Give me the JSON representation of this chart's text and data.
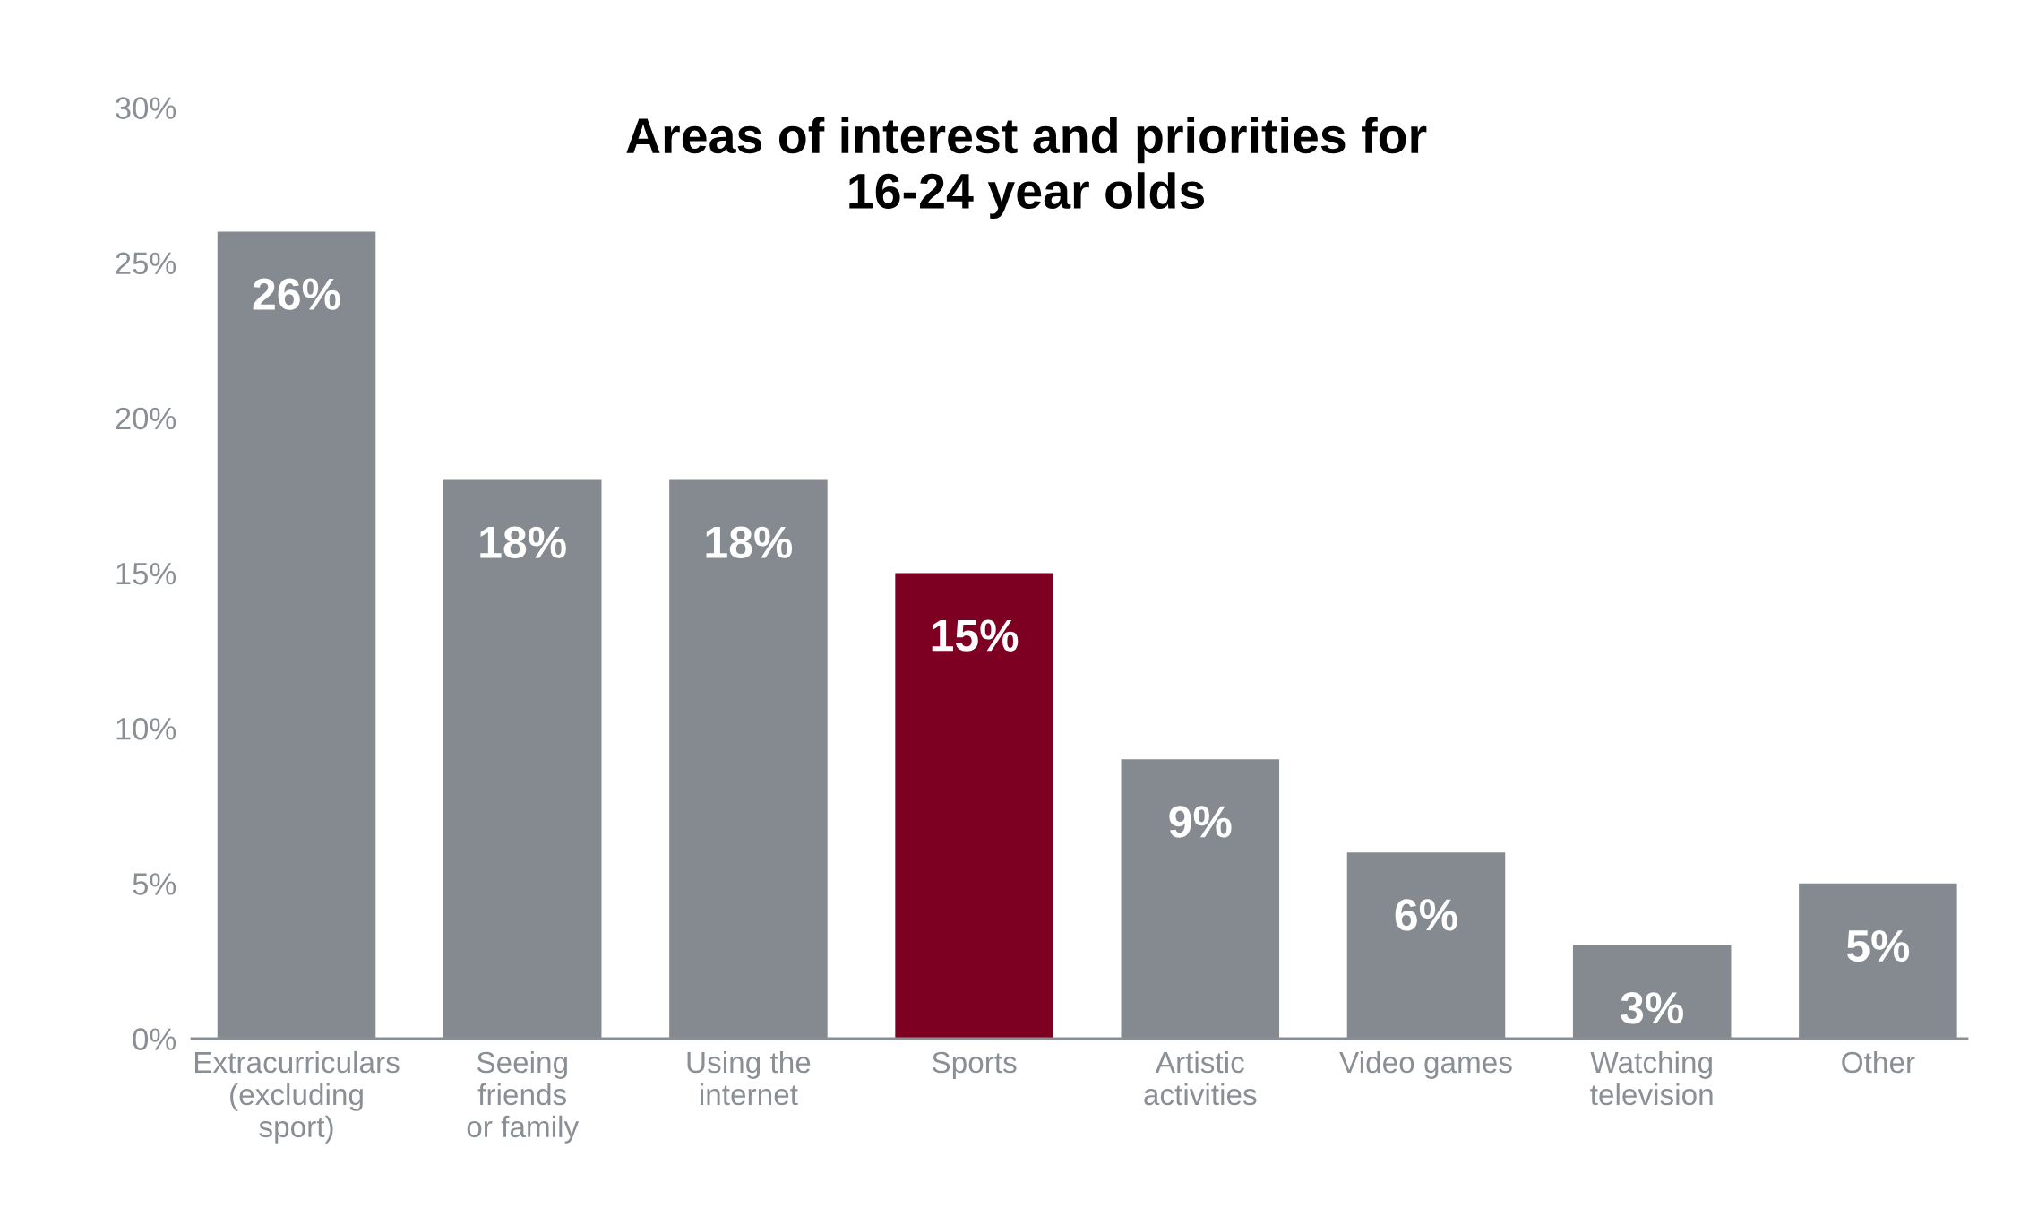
{
  "chart_data": {
    "type": "bar",
    "title": "Areas of interest and priorities for\n16-24 year olds",
    "categories": [
      "Extracurriculars\n(excluding\nsport)",
      "Seeing\nfriends\nor family",
      "Using the\ninternet",
      "Sports",
      "Artistic\nactivities",
      "Video games",
      "Watching\ntelevision",
      "Other"
    ],
    "values": [
      26,
      18,
      18,
      15,
      9,
      6,
      3,
      5
    ],
    "colors": [
      "#858a90",
      "#858a90",
      "#858a90",
      "#7d0023",
      "#858a90",
      "#858a90",
      "#858a90",
      "#858a90"
    ],
    "ylim": [
      0,
      30
    ],
    "yticks": [
      {
        "value": 0,
        "label": "0%"
      },
      {
        "value": 5,
        "label": "5%"
      },
      {
        "value": 10,
        "label": "10%"
      },
      {
        "value": 15,
        "label": "15%"
      },
      {
        "value": 20,
        "label": "20%"
      },
      {
        "value": 25,
        "label": "25%"
      },
      {
        "value": 30,
        "label": "30%"
      }
    ],
    "value_labels": [
      "26%",
      "18%",
      "18%",
      "15%",
      "9%",
      "6%",
      "3%",
      "5%"
    ],
    "grid": false,
    "legend": false
  }
}
